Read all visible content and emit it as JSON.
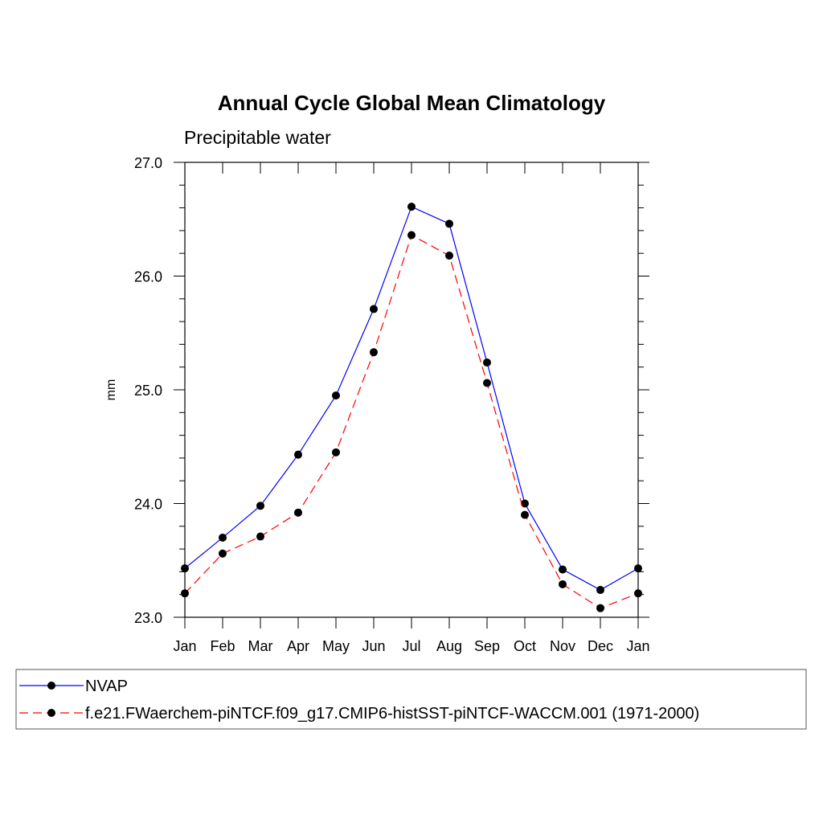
{
  "chart_data": {
    "type": "line",
    "title": "Annual Cycle Global Mean Climatology",
    "subtitle": "Precipitable water",
    "xlabel": "",
    "ylabel": "mm",
    "categories": [
      "Jan",
      "Feb",
      "Mar",
      "Apr",
      "May",
      "Jun",
      "Jul",
      "Aug",
      "Sep",
      "Oct",
      "Nov",
      "Dec",
      "Jan"
    ],
    "ylim": [
      23.0,
      27.0
    ],
    "yticks": [
      "23.0",
      "24.0",
      "25.0",
      "26.0",
      "27.0"
    ],
    "grid": false,
    "legend_position": "bottom",
    "series": [
      {
        "name": "NVAP",
        "color": "#0000ff",
        "style": "solid",
        "values": [
          23.43,
          23.7,
          23.98,
          24.43,
          24.95,
          25.71,
          26.61,
          26.46,
          25.24,
          24.0,
          23.42,
          23.24,
          23.43
        ]
      },
      {
        "name": "f.e21.FWaerchem-piNTCF.f09_g17.CMIP6-histSST-piNTCF-WACCM.001 (1971-2000)",
        "color": "#ff0000",
        "style": "dashed",
        "values": [
          23.21,
          23.56,
          23.71,
          23.92,
          24.45,
          25.33,
          26.36,
          26.18,
          25.06,
          23.9,
          23.29,
          23.08,
          23.21
        ]
      }
    ]
  }
}
